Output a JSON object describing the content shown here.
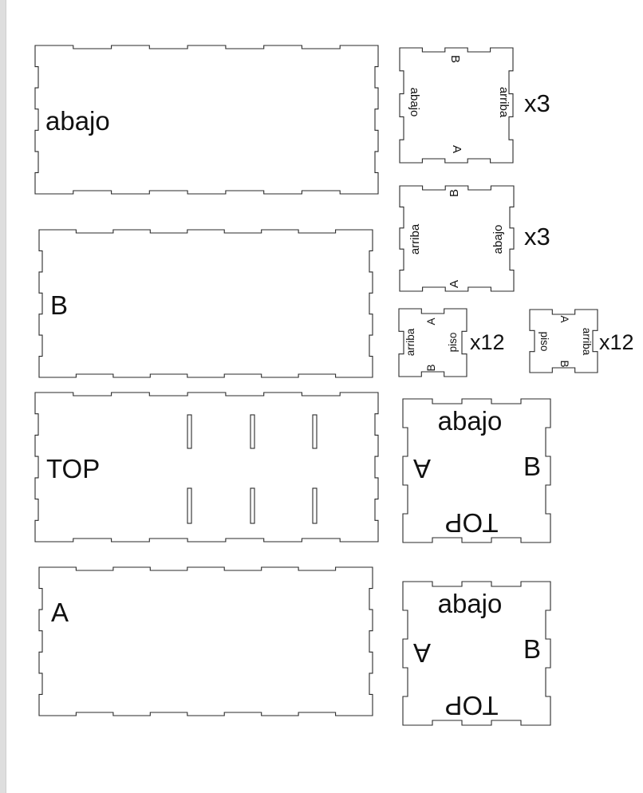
{
  "big_panels": [
    {
      "label": "abajo"
    },
    {
      "label": "B"
    },
    {
      "label": "TOP"
    },
    {
      "label": "A"
    }
  ],
  "small_panels": [
    {
      "label_left": "abajo",
      "label_right": "arriba",
      "label_top": "B",
      "label_bottom": "A",
      "quantity": "x3"
    },
    {
      "label_left": "arriba",
      "label_right": "abajo",
      "label_top": "B",
      "label_bottom": "A",
      "quantity": "x3"
    }
  ],
  "tiny_panels": [
    {
      "label_arriba": "arriba",
      "label_piso": "piso",
      "label_a": "A",
      "label_b": "B",
      "quantity": "x12"
    },
    {
      "label_arriba": "arriba",
      "label_piso": "piso",
      "label_a": "A",
      "label_b": "B",
      "quantity": "x12"
    }
  ],
  "end_panels": [
    {
      "label_top": "abajo",
      "label_left": "A",
      "label_right": "B",
      "label_bottom": "TOP"
    },
    {
      "label_top": "abajo",
      "label_left": "A",
      "label_right": "B",
      "label_bottom": "TOP"
    }
  ]
}
